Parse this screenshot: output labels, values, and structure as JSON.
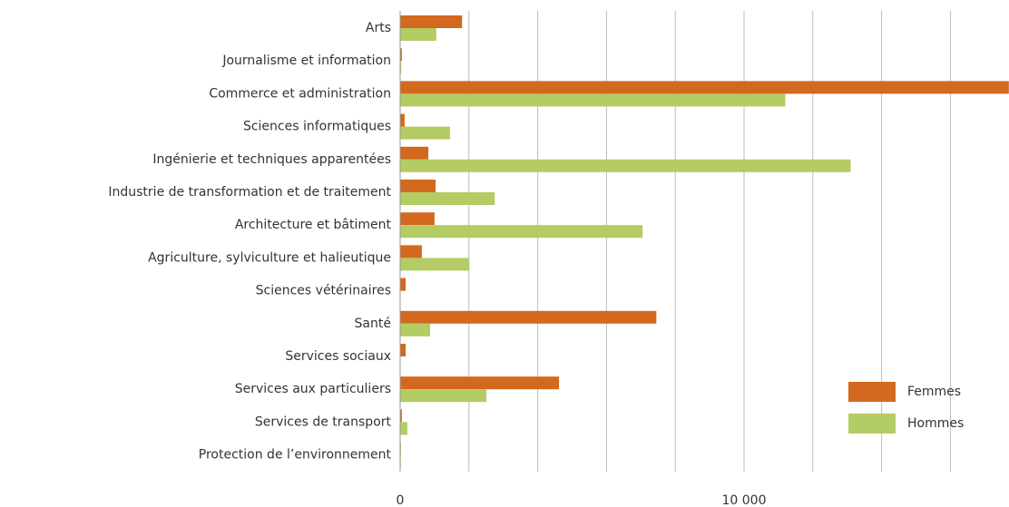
{
  "chart_data": {
    "type": "barh",
    "categories": [
      "Arts",
      "Journalisme et information",
      "Commerce et administration",
      "Sciences informatiques",
      "Ingénierie et techniques apparentées",
      "Industrie de transformation et de traitement",
      "Architecture et bâtiment",
      "Agriculture, sylviculture et halieutique",
      "Sciences vétérinaires",
      "Santé",
      "Services sociaux",
      "Services aux particuliers",
      "Services de transport",
      "Protection de l’environnement"
    ],
    "series": [
      {
        "name": "Femmes",
        "color": "#d2691f",
        "values": [
          1800,
          50,
          17700,
          130,
          820,
          1030,
          1000,
          630,
          160,
          7450,
          160,
          4620,
          50,
          20
        ]
      },
      {
        "name": "Hommes",
        "color": "#b3cc63",
        "values": [
          1050,
          30,
          11200,
          1450,
          13100,
          2750,
          7050,
          2000,
          10,
          870,
          10,
          2510,
          210,
          20
        ]
      }
    ],
    "xlim": [
      0,
      17700
    ],
    "xticks": [
      0,
      {
        "value": 10000,
        "label": "10 000"
      }
    ],
    "xgrid": [
      0,
      2000,
      4000,
      6000,
      8000,
      10000,
      12000,
      14000,
      16000
    ],
    "grid": true,
    "legend": "lower-right"
  }
}
